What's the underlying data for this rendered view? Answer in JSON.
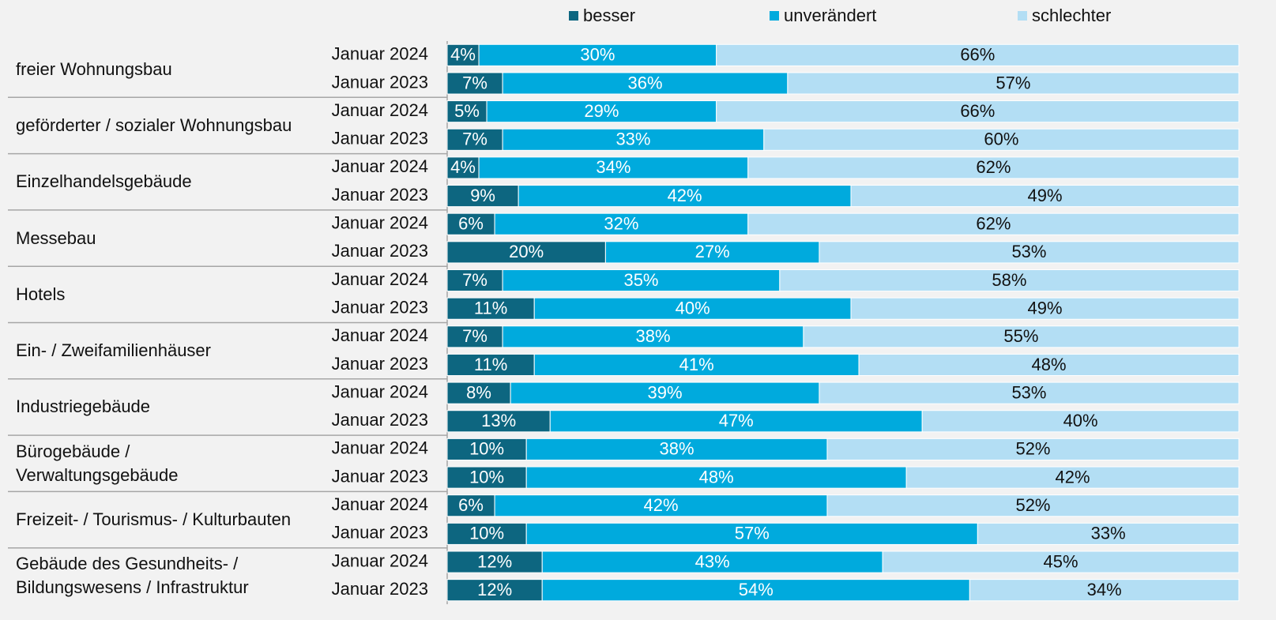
{
  "chart_data": {
    "type": "bar",
    "orientation": "horizontal",
    "stacked": true,
    "legend": "top",
    "groups": [
      "freier Wohnungsbau",
      "geförderter / sozialer Wohnungsbau",
      "Einzelhandelsgebäude",
      "Messebau",
      "Hotels",
      "Ein- / Zweifamilienhäuser",
      "Industriegebäude",
      "Bürogebäude / Verwaltungsgebäude",
      "Freizeit- / Tourismus- / Kulturbauten",
      "Gebäude des Gesundheits- / Bildungswesens / Infrastruktur"
    ],
    "categories": [
      "Januar 2024",
      "Januar 2023",
      "Januar 2024",
      "Januar 2023",
      "Januar 2024",
      "Januar 2023",
      "Januar 2024",
      "Januar 2023",
      "Januar 2024",
      "Januar 2023",
      "Januar 2024",
      "Januar 2023",
      "Januar 2024",
      "Januar 2023",
      "Januar 2024",
      "Januar 2023",
      "Januar 2024",
      "Januar 2023",
      "Januar 2024",
      "Januar 2023"
    ],
    "series": [
      {
        "name": "besser",
        "color": "#0d6680",
        "label_color": "#ffffff",
        "values": [
          4,
          7,
          5,
          7,
          4,
          9,
          6,
          20,
          7,
          11,
          7,
          11,
          8,
          13,
          10,
          10,
          6,
          10,
          12,
          12
        ],
        "value_labels": [
          "4%",
          "7%",
          "5%",
          "7%",
          "4%",
          "9%",
          "6%",
          "20%",
          "7%",
          "11%",
          "7%",
          "11%",
          "8%",
          "13%",
          "10%",
          "10%",
          "6%",
          "10%",
          "12%",
          "12%"
        ]
      },
      {
        "name": "unverändert",
        "color": "#00aadd",
        "label_color": "#ffffff",
        "values": [
          30,
          36,
          29,
          33,
          34,
          42,
          32,
          27,
          35,
          40,
          38,
          41,
          39,
          47,
          38,
          48,
          42,
          57,
          43,
          54
        ],
        "value_labels": [
          "30%",
          "36%",
          "29%",
          "33%",
          "34%",
          "42%",
          "32%",
          "27%",
          "35%",
          "40%",
          "38%",
          "41%",
          "39%",
          "47%",
          "38%",
          "48%",
          "42%",
          "57%",
          "43%",
          "54%"
        ]
      },
      {
        "name": "schlechter",
        "color": "#b3def4",
        "label_color": "#111111",
        "values": [
          66,
          57,
          66,
          60,
          62,
          49,
          62,
          53,
          58,
          49,
          55,
          48,
          53,
          40,
          52,
          42,
          52,
          33,
          45,
          34
        ],
        "value_labels": [
          "66%",
          "57%",
          "66%",
          "60%",
          "62%",
          "49%",
          "62%",
          "53%",
          "58%",
          "49%",
          "55%",
          "48%",
          "53%",
          "40%",
          "52%",
          "42%",
          "52%",
          "33%",
          "45%",
          "34%"
        ]
      }
    ]
  }
}
